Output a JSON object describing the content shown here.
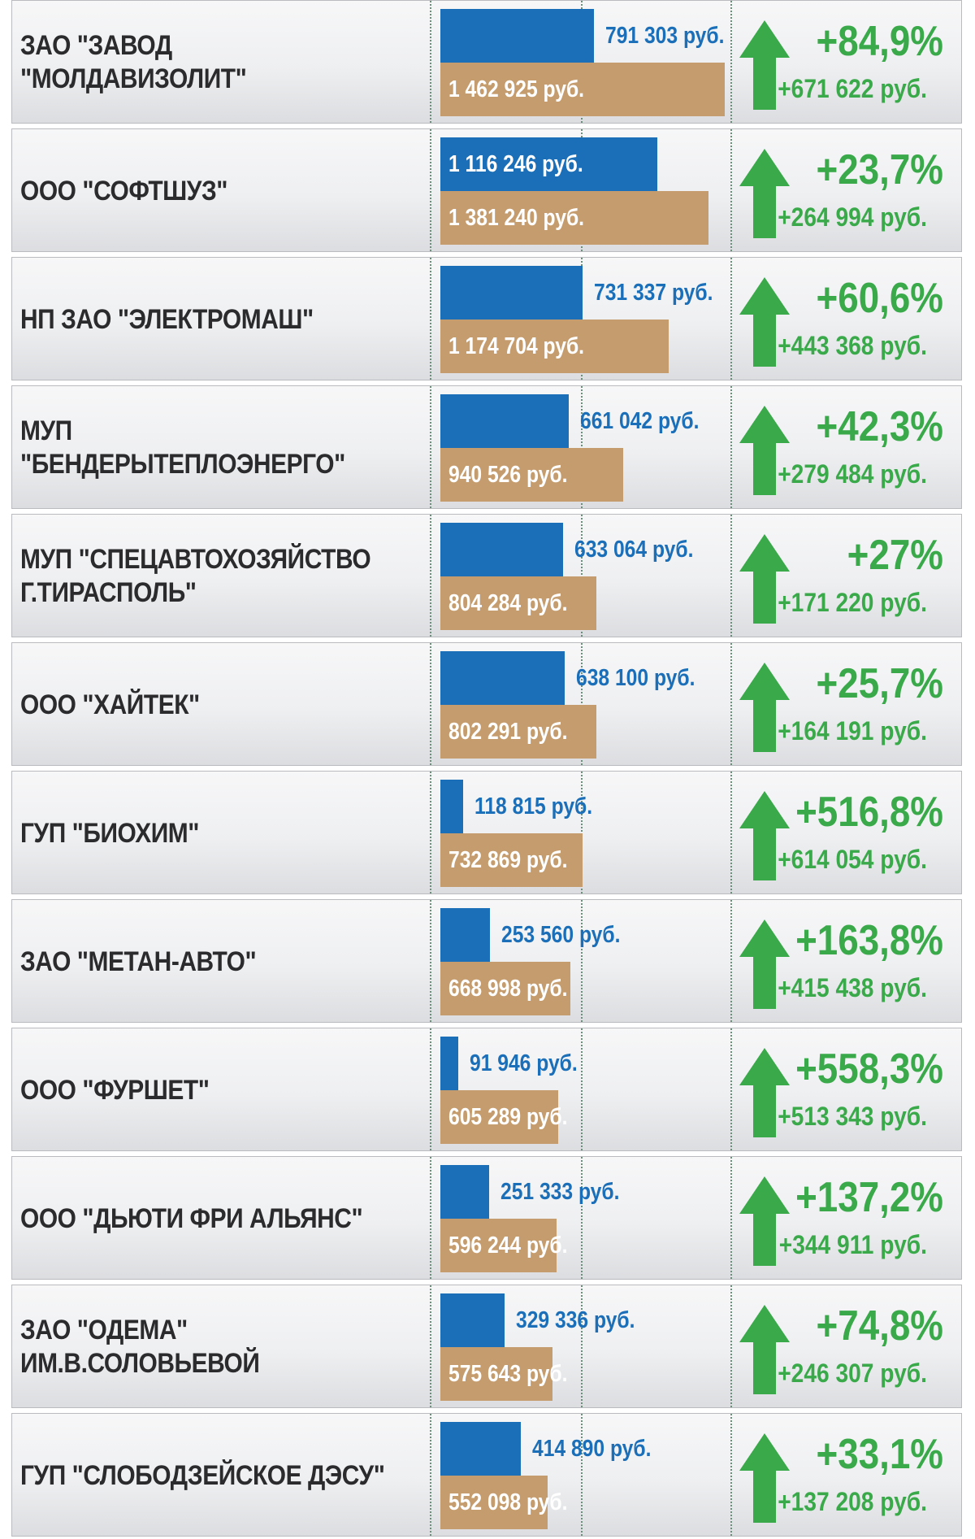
{
  "chart_data": {
    "type": "bar",
    "categories": [
      "ЗАО \"ЗАВОД \"МОЛДАВИЗОЛИТ\"",
      "ООО \"СОФТШУЗ\"",
      "НП ЗАО \"ЭЛЕКТРОМАШ\"",
      "МУП \"БЕНДЕРЫТЕПЛОЭНЕРГО\"",
      "МУП \"СПЕЦАВТОХОЗЯЙСТВО\nГ.ТИРАСПОЛЬ\"",
      "ООО  \"ХАЙТЕК\"",
      "ГУП \"БИОХИМ\"",
      "ЗАО \"МЕТАН-АВТО\"",
      "ООО \"ФУРШЕТ\"",
      "ООО \"ДЬЮТИ ФРИ АЛЬЯНС\"",
      "ЗАО \"ОДЕМА\" ИМ.В.СОЛОВЬЕВОЙ",
      "ГУП \"СЛОБОДЗЕЙСКОЕ ДЭСУ\""
    ],
    "series": [
      {
        "color": "#1b6fb9",
        "values": [
          791303,
          1116246,
          731337,
          661042,
          633064,
          638100,
          118815,
          253560,
          91946,
          251333,
          329336,
          414890
        ],
        "labels": [
          "791 303 руб.",
          "1 116 246 руб.",
          "731 337 руб.",
          "661 042 руб.",
          "633 064 руб.",
          "638 100 руб.",
          "118 815 руб.",
          "253 560 руб.",
          "91 946 руб.",
          "251 333 руб.",
          "329 336 руб.",
          "414 890 руб."
        ]
      },
      {
        "color": "#c59c6d",
        "values": [
          1462925,
          1381240,
          1174704,
          940526,
          804284,
          802291,
          732869,
          668998,
          605289,
          596244,
          575643,
          552098
        ],
        "labels": [
          "1 462 925 руб.",
          "1 381 240 руб.",
          "1 174 704 руб.",
          "940 526 руб.",
          "804 284 руб.",
          "802 291 руб.",
          "732 869 руб.",
          "668 998 руб.",
          "605 289 руб.",
          "596 244 руб.",
          "575 643 руб.",
          "552 098 руб."
        ]
      }
    ],
    "growth_percent": [
      "+84,9%",
      "+23,7%",
      "+60,6%",
      "+42,3%",
      "+27%",
      "+25,7%",
      "+516,8%",
      "+163,8%",
      "+558,3%",
      "+137,2%",
      "+74,8%",
      "+33,1%"
    ],
    "growth_abs": [
      "+671 622 руб.",
      "+264 994 руб.",
      "+443 368 руб.",
      "+279 484 руб.",
      "+171 220 руб.",
      "+164 191 руб.",
      "+614 054 руб.",
      "+415 438 руб.",
      "+513 343 руб.",
      "+344 911 руб.",
      "+246 307 руб.",
      "+137 208 руб."
    ],
    "title": "",
    "xlabel": "",
    "ylabel": "",
    "legend": "none",
    "grid": true
  },
  "colors": {
    "accent_up": "#39a94a",
    "previous_bar": "#1b6fb9",
    "current_bar": "#c59c6d"
  },
  "icons": {
    "growth": "up-arrow-icon"
  }
}
